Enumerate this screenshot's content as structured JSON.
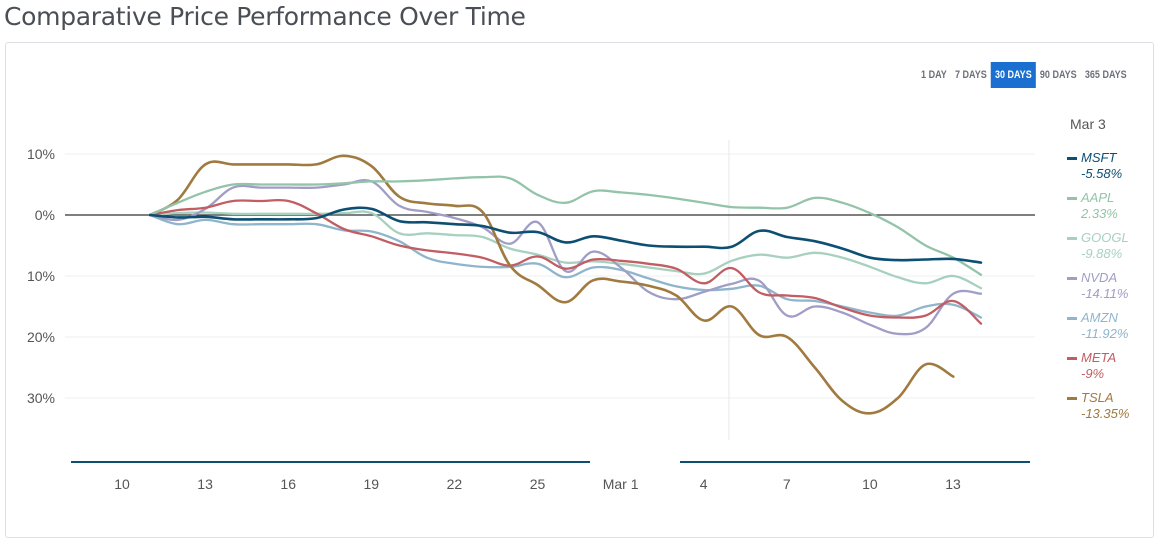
{
  "title": "Comparative Price Performance Over Time",
  "range_buttons": [
    {
      "label": "1 DAY",
      "active": false
    },
    {
      "label": "7 DAYS",
      "active": false
    },
    {
      "label": "30 DAYS",
      "active": true
    },
    {
      "label": "90 DAYS",
      "active": false
    },
    {
      "label": "365 DAYS",
      "active": false
    }
  ],
  "legend_date": "Mar 3",
  "chart_data": {
    "type": "line",
    "title": "Comparative Price Performance Over Time",
    "xlabel": "",
    "ylabel": "",
    "x_ticks": [
      "10",
      "13",
      "16",
      "19",
      "22",
      "25",
      "Mar 1",
      "4",
      "7",
      "10",
      "13"
    ],
    "x_start_tick": "10",
    "x_unit_days": 1,
    "y_ticks": [
      {
        "value": 10,
        "label": "10%"
      },
      {
        "value": 0,
        "label": "0%"
      },
      {
        "value": -10,
        "label": "10%"
      },
      {
        "value": -20,
        "label": "20%"
      },
      {
        "value": -30,
        "label": "30%"
      }
    ],
    "ylim": [
      -37,
      13
    ],
    "grid": true,
    "legend_position": "right",
    "hover_marker_x": 21.9,
    "series": [
      {
        "name": "MSFT",
        "legend_value": "-5.58%",
        "color": "#0d4f73",
        "points": [
          [
            1,
            0
          ],
          [
            2,
            -0.4
          ],
          [
            3,
            -0.3
          ],
          [
            4,
            -0.7
          ],
          [
            5,
            -0.7
          ],
          [
            6,
            -0.7
          ],
          [
            7,
            -0.5
          ],
          [
            8,
            0.9
          ],
          [
            9,
            1.0
          ],
          [
            10,
            -1.0
          ],
          [
            11,
            -1.2
          ],
          [
            12,
            -1.5
          ],
          [
            13,
            -1.8
          ],
          [
            14,
            -2.9
          ],
          [
            15,
            -2.8
          ],
          [
            16,
            -4.5
          ],
          [
            17,
            -3.5
          ],
          [
            18,
            -4.2
          ],
          [
            19,
            -5.0
          ],
          [
            20,
            -5.2
          ],
          [
            21,
            -5.2
          ],
          [
            22,
            -5.2
          ],
          [
            23,
            -2.6
          ],
          [
            24,
            -3.6
          ],
          [
            25,
            -4.3
          ],
          [
            26,
            -5.5
          ],
          [
            27,
            -7.0
          ],
          [
            28,
            -7.4
          ],
          [
            29,
            -7.3
          ],
          [
            30,
            -7.2
          ],
          [
            31,
            -7.8
          ]
        ]
      },
      {
        "name": "AAPL",
        "legend_value": "2.33%",
        "color": "#93c4a9",
        "points": [
          [
            1,
            0
          ],
          [
            2,
            2.0
          ],
          [
            3,
            3.8
          ],
          [
            4,
            5.0
          ],
          [
            5,
            5.0
          ],
          [
            6,
            5.0
          ],
          [
            7,
            5.0
          ],
          [
            8,
            5.2
          ],
          [
            9,
            5.5
          ],
          [
            10,
            5.5
          ],
          [
            11,
            5.7
          ],
          [
            12,
            6.0
          ],
          [
            13,
            6.2
          ],
          [
            14,
            6.0
          ],
          [
            15,
            3.3
          ],
          [
            16,
            2.0
          ],
          [
            17,
            3.9
          ],
          [
            18,
            3.7
          ],
          [
            19,
            3.3
          ],
          [
            20,
            2.7
          ],
          [
            21,
            2.0
          ],
          [
            22,
            1.3
          ],
          [
            23,
            1.2
          ],
          [
            24,
            1.2
          ],
          [
            25,
            2.8
          ],
          [
            26,
            2.0
          ],
          [
            27,
            0.3
          ],
          [
            28,
            -2.0
          ],
          [
            29,
            -5.0
          ],
          [
            30,
            -7.0
          ],
          [
            31,
            -9.8
          ]
        ]
      },
      {
        "name": "GOOGL",
        "legend_value": "-9.88%",
        "color": "#a7d0bf",
        "points": [
          [
            1,
            0
          ],
          [
            2,
            0.3
          ],
          [
            3,
            0.4
          ],
          [
            4,
            0.2
          ],
          [
            5,
            0.2
          ],
          [
            6,
            0.2
          ],
          [
            7,
            0.2
          ],
          [
            8,
            0.3
          ],
          [
            9,
            0.3
          ],
          [
            10,
            -3.0
          ],
          [
            11,
            -3.0
          ],
          [
            12,
            -3.3
          ],
          [
            13,
            -3.6
          ],
          [
            14,
            -5.5
          ],
          [
            15,
            -6.5
          ],
          [
            16,
            -7.8
          ],
          [
            17,
            -7.6
          ],
          [
            18,
            -8.0
          ],
          [
            19,
            -8.6
          ],
          [
            20,
            -9.2
          ],
          [
            21,
            -9.6
          ],
          [
            22,
            -7.5
          ],
          [
            23,
            -6.5
          ],
          [
            24,
            -7.0
          ],
          [
            25,
            -6.2
          ],
          [
            26,
            -7.0
          ],
          [
            27,
            -8.5
          ],
          [
            28,
            -10.2
          ],
          [
            29,
            -11.2
          ],
          [
            30,
            -10.0
          ],
          [
            31,
            -12.0
          ]
        ]
      },
      {
        "name": "NVDA",
        "legend_value": "-14.11%",
        "color": "#a09dc6",
        "points": [
          [
            1,
            0
          ],
          [
            2,
            -0.8
          ],
          [
            3,
            1.0
          ],
          [
            4,
            4.5
          ],
          [
            5,
            4.5
          ],
          [
            6,
            4.5
          ],
          [
            7,
            4.5
          ],
          [
            8,
            5.0
          ],
          [
            9,
            5.5
          ],
          [
            10,
            1.5
          ],
          [
            11,
            0.5
          ],
          [
            12,
            -0.5
          ],
          [
            13,
            -2.0
          ],
          [
            14,
            -4.7
          ],
          [
            15,
            -1.2
          ],
          [
            16,
            -9.2
          ],
          [
            17,
            -6.0
          ],
          [
            18,
            -8.6
          ],
          [
            19,
            -12.6
          ],
          [
            20,
            -13.8
          ],
          [
            21,
            -12.6
          ],
          [
            22,
            -11.3
          ],
          [
            23,
            -10.8
          ],
          [
            24,
            -16.5
          ],
          [
            25,
            -15.0
          ],
          [
            26,
            -16.0
          ],
          [
            27,
            -18.0
          ],
          [
            28,
            -19.5
          ],
          [
            29,
            -18.5
          ],
          [
            30,
            -12.9
          ],
          [
            31,
            -12.9
          ]
        ]
      },
      {
        "name": "AMZN",
        "legend_value": "-11.92%",
        "color": "#8fb5cc",
        "points": [
          [
            1,
            0
          ],
          [
            2,
            -1.5
          ],
          [
            3,
            -0.8
          ],
          [
            4,
            -1.5
          ],
          [
            5,
            -1.5
          ],
          [
            6,
            -1.5
          ],
          [
            7,
            -1.5
          ],
          [
            8,
            -2.5
          ],
          [
            9,
            -2.7
          ],
          [
            10,
            -4.3
          ],
          [
            11,
            -7.0
          ],
          [
            12,
            -8.0
          ],
          [
            13,
            -8.5
          ],
          [
            14,
            -8.5
          ],
          [
            15,
            -8.0
          ],
          [
            16,
            -10.2
          ],
          [
            17,
            -8.6
          ],
          [
            18,
            -9.0
          ],
          [
            19,
            -10.4
          ],
          [
            20,
            -11.7
          ],
          [
            21,
            -12.3
          ],
          [
            22,
            -12.1
          ],
          [
            23,
            -11.6
          ],
          [
            24,
            -13.8
          ],
          [
            25,
            -14.1
          ],
          [
            26,
            -15.0
          ],
          [
            27,
            -16.0
          ],
          [
            28,
            -16.5
          ],
          [
            29,
            -15.0
          ],
          [
            30,
            -14.7
          ],
          [
            31,
            -16.8
          ]
        ]
      },
      {
        "name": "META",
        "legend_value": "-9%",
        "color": "#c15d63",
        "points": [
          [
            1,
            0
          ],
          [
            2,
            0.8
          ],
          [
            3,
            1.2
          ],
          [
            4,
            2.3
          ],
          [
            5,
            2.3
          ],
          [
            6,
            2.3
          ],
          [
            7,
            0.3
          ],
          [
            8,
            -2.3
          ],
          [
            9,
            -3.5
          ],
          [
            10,
            -5.0
          ],
          [
            11,
            -5.8
          ],
          [
            12,
            -6.3
          ],
          [
            13,
            -7.0
          ],
          [
            14,
            -8.3
          ],
          [
            15,
            -6.8
          ],
          [
            16,
            -8.8
          ],
          [
            17,
            -7.3
          ],
          [
            18,
            -7.5
          ],
          [
            19,
            -8.0
          ],
          [
            20,
            -8.8
          ],
          [
            21,
            -11.2
          ],
          [
            22,
            -8.7
          ],
          [
            23,
            -12.7
          ],
          [
            24,
            -13.2
          ],
          [
            25,
            -13.6
          ],
          [
            26,
            -15.2
          ],
          [
            27,
            -16.5
          ],
          [
            28,
            -16.8
          ],
          [
            29,
            -16.5
          ],
          [
            30,
            -14.1
          ],
          [
            31,
            -17.8
          ]
        ]
      },
      {
        "name": "TSLA",
        "legend_value": "-13.35%",
        "color": "#a17a3f",
        "points": [
          [
            1,
            0
          ],
          [
            2,
            2.5
          ],
          [
            3,
            8.3
          ],
          [
            4,
            8.3
          ],
          [
            5,
            8.3
          ],
          [
            6,
            8.3
          ],
          [
            7,
            8.3
          ],
          [
            8,
            9.7
          ],
          [
            9,
            8.0
          ],
          [
            10,
            3.0
          ],
          [
            11,
            1.9
          ],
          [
            12,
            1.5
          ],
          [
            13,
            0.5
          ],
          [
            14,
            -8.3
          ],
          [
            15,
            -11.5
          ],
          [
            16,
            -14.3
          ],
          [
            17,
            -10.7
          ],
          [
            18,
            -10.9
          ],
          [
            19,
            -11.6
          ],
          [
            20,
            -13.2
          ],
          [
            21,
            -17.3
          ],
          [
            22,
            -15.0
          ],
          [
            23,
            -19.7
          ],
          [
            24,
            -20.0
          ],
          [
            25,
            -25.0
          ],
          [
            26,
            -30.5
          ],
          [
            27,
            -32.5
          ],
          [
            28,
            -30.0
          ],
          [
            29,
            -24.5
          ],
          [
            30,
            -26.5
          ]
        ]
      }
    ]
  }
}
